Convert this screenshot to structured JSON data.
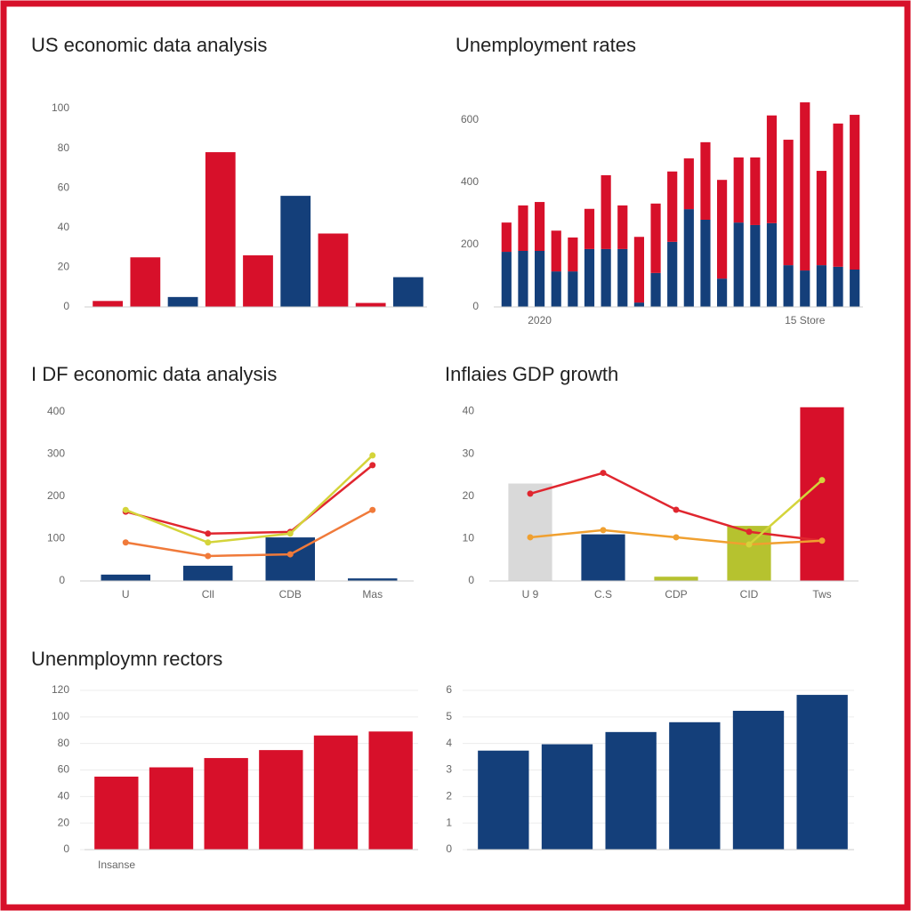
{
  "chart_data": [
    {
      "type": "bar",
      "title": "US economic data analysis",
      "categories": [
        null,
        null,
        null,
        null,
        null,
        null,
        null,
        null,
        null
      ],
      "series": [
        {
          "colors": [
            "#d7102a",
            "#d7102a",
            "#143f7a",
            "#d7102a",
            "#d7102a",
            "#143f7a",
            "#d7102a",
            "#d7102a",
            "#143f7a"
          ],
          "values": [
            3,
            25,
            5,
            78,
            26,
            56,
            37,
            2,
            15
          ]
        }
      ],
      "ylim": [
        0,
        100
      ],
      "yticks": [
        0,
        20,
        40,
        60,
        80,
        100
      ],
      "grid": false
    },
    {
      "type": "stacked_bar",
      "title": "Unemployment rates",
      "categories": [
        null,
        null,
        "2020",
        null,
        null,
        null,
        null,
        null,
        null,
        null,
        null,
        null,
        null,
        null,
        null,
        null,
        null,
        null,
        "15 Store",
        null,
        null,
        null
      ],
      "series": [
        {
          "color": "#143f7a",
          "values": [
            177,
            180,
            180,
            114,
            114,
            186,
            186,
            186,
            14,
            109,
            209,
            314,
            280,
            91,
            271,
            263,
            269,
            134,
            117,
            134,
            129,
            120
          ]
        },
        {
          "color": "#d7102a",
          "values": [
            94,
            146,
            157,
            131,
            109,
            129,
            237,
            140,
            211,
            223,
            226,
            163,
            249,
            317,
            209,
            217,
            346,
            403,
            540,
            303,
            460,
            497
          ]
        }
      ],
      "ylim": [
        0,
        660
      ],
      "yticks": [
        0,
        200,
        400,
        600
      ],
      "grid": false
    },
    {
      "type": "combo",
      "title": "I DF economic data analysis",
      "categories": [
        "U",
        "Cll",
        "CDB",
        "Mas"
      ],
      "series": [
        {
          "kind": "bar",
          "color": "#143f7a",
          "values": [
            15,
            36,
            103,
            6
          ]
        },
        {
          "kind": "line",
          "color": "#e0262f",
          "values": [
            164,
            112,
            116,
            274
          ]
        },
        {
          "kind": "line",
          "color": "#d4d43a",
          "values": [
            168,
            91,
            112,
            297
          ]
        },
        {
          "kind": "line",
          "color": "#f07a3a",
          "values": [
            91,
            59,
            63,
            168
          ]
        }
      ],
      "ylim": [
        0,
        400
      ],
      "yticks": [
        0,
        100,
        200,
        300,
        400
      ],
      "grid": false
    },
    {
      "type": "combo",
      "title": "Inflaies GDP growth",
      "categories": [
        "U 9",
        "C.S",
        "CDP",
        "CID",
        "Tws"
      ],
      "series": [
        {
          "kind": "bar",
          "colors": [
            "#d9d9d9",
            "#143f7a",
            "#b6c22f",
            "#b6c22f",
            "#d7102a"
          ],
          "values": [
            23,
            11,
            1,
            13,
            41
          ]
        },
        {
          "kind": "line",
          "color": "#e0262f",
          "values": [
            20.6,
            25.5,
            16.8,
            11.6,
            9.5
          ]
        },
        {
          "kind": "line",
          "color": "#f0a030",
          "values": [
            10.3,
            12,
            10.3,
            8.6,
            9.5
          ]
        },
        {
          "kind": "line",
          "color": "#d4d43a",
          "values": [
            null,
            null,
            null,
            8.6,
            23.8
          ]
        }
      ],
      "ylim": [
        0,
        42
      ],
      "yticks": [
        0,
        10,
        20,
        30,
        40
      ],
      "grid": false
    },
    {
      "type": "bar",
      "title": "Unenmploymn rectors",
      "x_label": "Insanse",
      "categories": [
        null,
        null,
        null,
        null,
        null,
        null
      ],
      "series": [
        {
          "color": "#d7102a",
          "values": [
            55,
            62,
            69,
            75,
            86,
            89
          ]
        }
      ],
      "ylim": [
        0,
        120
      ],
      "yticks": [
        0,
        20,
        40,
        60,
        80,
        100,
        120
      ],
      "grid": true
    },
    {
      "type": "bar",
      "categories": [
        null,
        null,
        null,
        null,
        null,
        null
      ],
      "series": [
        {
          "color": "#143f7a",
          "values": [
            3.73,
            3.97,
            4.43,
            4.8,
            5.23,
            5.83
          ]
        }
      ],
      "ylim": [
        0,
        6
      ],
      "yticks": [
        0,
        1,
        2,
        3,
        4,
        5,
        6
      ],
      "grid": true
    }
  ]
}
